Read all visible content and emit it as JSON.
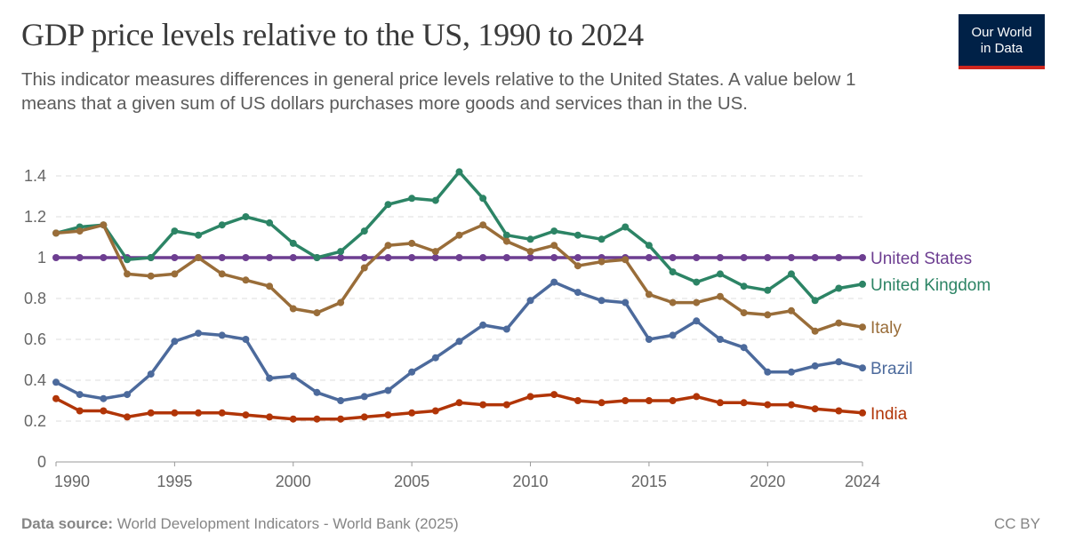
{
  "title": "GDP price levels relative to the US, 1990 to 2024",
  "subtitle": "This indicator measures differences in general price levels relative to the United States. A value below 1 means that a given sum of US dollars purchases more goods and services than in the US.",
  "logo": {
    "line1": "Our World",
    "line2": "in Data"
  },
  "footer": {
    "source_label": "Data source:",
    "source": "World Development Indicators - World Bank (2025)",
    "license": "CC BY"
  },
  "chart_data": {
    "type": "line",
    "title": "GDP price levels relative to the US, 1990 to 2024",
    "xlim": [
      1990,
      2024
    ],
    "ylim": [
      0,
      1.4
    ],
    "xticks": [
      "1990",
      "1995",
      "2000",
      "2005",
      "2010",
      "2015",
      "2020",
      "2024"
    ],
    "yticks": [
      "0",
      "0.2",
      "0.4",
      "0.6",
      "0.8",
      "1",
      "1.2",
      "1.4"
    ],
    "grid": "horizontal dashed",
    "legend": "right, inline end labels",
    "x": [
      1990,
      1991,
      1992,
      1993,
      1994,
      1995,
      1996,
      1997,
      1998,
      1999,
      2000,
      2001,
      2002,
      2003,
      2004,
      2005,
      2006,
      2007,
      2008,
      2009,
      2010,
      2011,
      2012,
      2013,
      2014,
      2015,
      2016,
      2017,
      2018,
      2019,
      2020,
      2021,
      2022,
      2023,
      2024
    ],
    "series": [
      {
        "name": "United States",
        "color": "#6d3e91",
        "values": [
          1,
          1,
          1,
          1,
          1,
          1,
          1,
          1,
          1,
          1,
          1,
          1,
          1,
          1,
          1,
          1,
          1,
          1,
          1,
          1,
          1,
          1,
          1,
          1,
          1,
          1,
          1,
          1,
          1,
          1,
          1,
          1,
          1,
          1,
          1
        ]
      },
      {
        "name": "United Kingdom",
        "color": "#2c8465",
        "values": [
          1.12,
          1.15,
          1.16,
          0.99,
          1.0,
          1.13,
          1.11,
          1.16,
          1.2,
          1.17,
          1.07,
          1.0,
          1.03,
          1.13,
          1.26,
          1.29,
          1.28,
          1.42,
          1.29,
          1.11,
          1.09,
          1.13,
          1.11,
          1.09,
          1.15,
          1.06,
          0.93,
          0.88,
          0.92,
          0.86,
          0.84,
          0.92,
          0.79,
          0.85,
          0.87
        ]
      },
      {
        "name": "Italy",
        "color": "#996d39",
        "values": [
          1.12,
          1.13,
          1.16,
          0.92,
          0.91,
          0.92,
          1.0,
          0.92,
          0.89,
          0.86,
          0.75,
          0.73,
          0.78,
          0.95,
          1.06,
          1.07,
          1.03,
          1.11,
          1.16,
          1.08,
          1.03,
          1.06,
          0.96,
          0.98,
          0.99,
          0.82,
          0.78,
          0.78,
          0.81,
          0.73,
          0.72,
          0.74,
          0.64,
          0.68,
          0.66
        ]
      },
      {
        "name": "Brazil",
        "color": "#4c6a9c",
        "values": [
          0.39,
          0.33,
          0.31,
          0.33,
          0.43,
          0.59,
          0.63,
          0.62,
          0.6,
          0.41,
          0.42,
          0.34,
          0.3,
          0.32,
          0.35,
          0.44,
          0.51,
          0.59,
          0.67,
          0.65,
          0.79,
          0.88,
          0.83,
          0.79,
          0.78,
          0.6,
          0.62,
          0.69,
          0.6,
          0.56,
          0.44,
          0.44,
          0.47,
          0.49,
          0.46
        ]
      },
      {
        "name": "India",
        "color": "#b13507",
        "values": [
          0.31,
          0.25,
          0.25,
          0.22,
          0.24,
          0.24,
          0.24,
          0.24,
          0.23,
          0.22,
          0.21,
          0.21,
          0.21,
          0.22,
          0.23,
          0.24,
          0.25,
          0.29,
          0.28,
          0.28,
          0.32,
          0.33,
          0.3,
          0.29,
          0.3,
          0.3,
          0.3,
          0.32,
          0.29,
          0.29,
          0.28,
          0.28,
          0.26,
          0.25,
          0.24
        ]
      }
    ]
  }
}
